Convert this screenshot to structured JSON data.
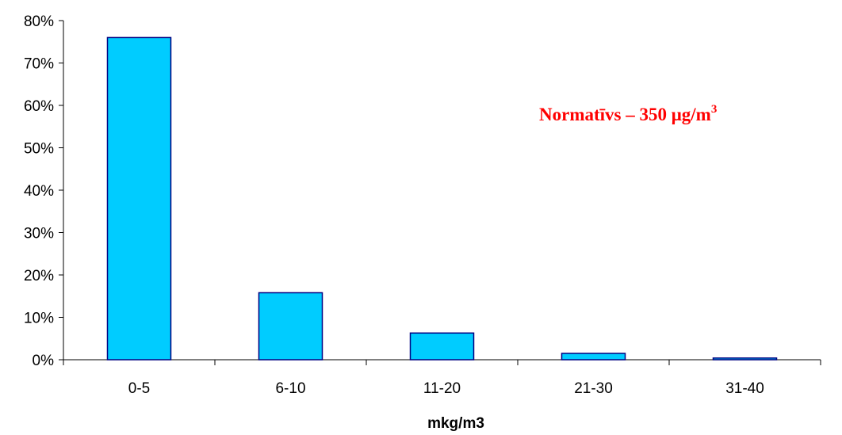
{
  "chart_data": {
    "type": "bar",
    "categories": [
      "0-5",
      "6-10",
      "11-20",
      "21-30",
      "31-40"
    ],
    "values": [
      76,
      15.8,
      6.3,
      1.5,
      0.4
    ],
    "title": "",
    "xlabel": "mkg/m3",
    "ylabel": "",
    "ylim": [
      0,
      80
    ],
    "yticks": [
      "0%",
      "10%",
      "20%",
      "30%",
      "40%",
      "50%",
      "60%",
      "70%",
      "80%"
    ],
    "grid": false,
    "legend": "none",
    "colors": {
      "bar_fill": "#00ccff",
      "bar_stroke": "#000080",
      "annotation": "#ff0000"
    },
    "annotation": {
      "text": "Normatīvs – 350 μg/m",
      "superscript": "3"
    }
  }
}
